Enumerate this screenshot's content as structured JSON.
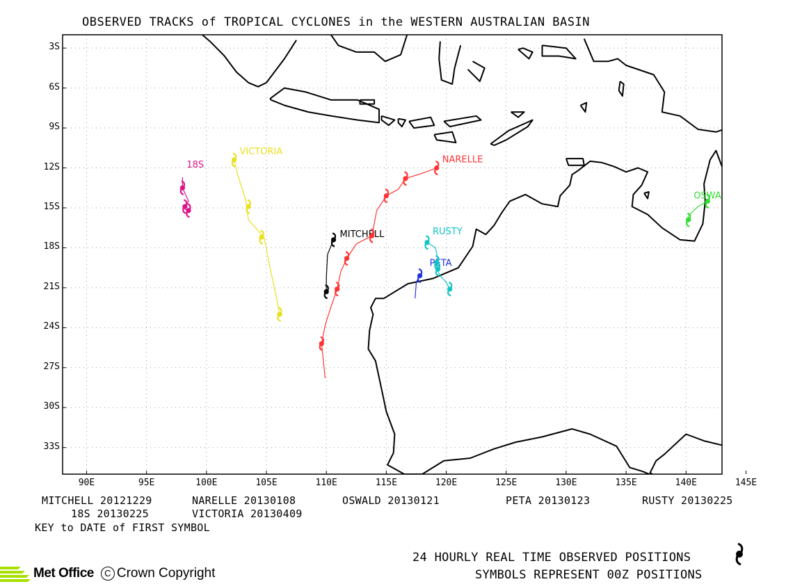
{
  "title": "OBSERVED TRACKS of TROPICAL CYCLONES in the WESTERN AUSTRALIAN BASIN",
  "map": {
    "lon_range": [
      88,
      143
    ],
    "lat_range": [
      -2,
      -35
    ],
    "lat_ticks": [
      "3S",
      "6S",
      "9S",
      "12S",
      "15S",
      "18S",
      "21S",
      "24S",
      "27S",
      "30S",
      "33S"
    ],
    "lon_ticks": [
      "90E",
      "95E",
      "100E",
      "105E",
      "110E",
      "115E",
      "120E",
      "125E",
      "130E",
      "135E",
      "140E",
      "145E"
    ],
    "grid": "dotted"
  },
  "storms": [
    {
      "name": "MITCHELL",
      "color": "#000000",
      "label": "MITCHELL",
      "track": [
        [
          110.6,
          -17.4
        ],
        [
          110.1,
          -18.5
        ],
        [
          110.0,
          -20.2
        ],
        [
          110.0,
          -21.3
        ]
      ],
      "symbols": [
        [
          110.6,
          -17.4
        ],
        [
          110.0,
          -21.3
        ]
      ]
    },
    {
      "name": "NARELLE",
      "color": "#ff3333",
      "label": "NARELLE",
      "track": [
        [
          119.2,
          -12.0
        ],
        [
          118.0,
          -12.4
        ],
        [
          116.6,
          -12.8
        ],
        [
          116.0,
          -13.6
        ],
        [
          115.0,
          -14.1
        ],
        [
          114.2,
          -15.2
        ],
        [
          113.8,
          -17.1
        ],
        [
          112.5,
          -17.7
        ],
        [
          111.7,
          -18.8
        ],
        [
          111.2,
          -19.8
        ],
        [
          110.9,
          -21.1
        ],
        [
          110.4,
          -22.4
        ],
        [
          109.9,
          -23.8
        ],
        [
          109.6,
          -25.2
        ],
        [
          109.9,
          -27.8
        ]
      ],
      "symbols": [
        [
          119.2,
          -12.0
        ],
        [
          116.6,
          -12.8
        ],
        [
          115.0,
          -14.1
        ],
        [
          113.8,
          -17.1
        ],
        [
          111.7,
          -18.8
        ],
        [
          110.9,
          -21.1
        ],
        [
          109.6,
          -25.2
        ]
      ]
    },
    {
      "name": "OSWALD",
      "color": "#33dd33",
      "label": "OSWALD",
      "track": [
        [
          141.8,
          -14.5
        ],
        [
          141.0,
          -14.9
        ],
        [
          140.2,
          -15.6
        ],
        [
          140.1,
          -16.0
        ]
      ],
      "symbols": [
        [
          141.8,
          -14.5
        ],
        [
          140.2,
          -15.9
        ]
      ]
    },
    {
      "name": "PETA",
      "color": "#2233dd",
      "label": "PETA",
      "track": [
        [
          117.8,
          -20.0
        ],
        [
          117.5,
          -20.6
        ],
        [
          117.4,
          -21.8
        ]
      ],
      "symbols": [
        [
          117.8,
          -20.1
        ]
      ]
    },
    {
      "name": "RUSTY",
      "color": "#11c4c4",
      "label": "RUSTY",
      "track": [
        [
          118.4,
          -17.6
        ],
        [
          119.1,
          -18.0
        ],
        [
          119.3,
          -18.9
        ],
        [
          119.2,
          -19.6
        ],
        [
          119.5,
          -20.1
        ],
        [
          120.0,
          -20.6
        ],
        [
          120.3,
          -21.1
        ]
      ],
      "symbols": [
        [
          118.4,
          -17.6
        ],
        [
          119.2,
          -19.1
        ],
        [
          119.3,
          -19.6
        ],
        [
          120.3,
          -21.1
        ]
      ]
    },
    {
      "name": "18S",
      "color": "#dd1188",
      "label": "18S",
      "track": [
        [
          98.0,
          -12.7
        ],
        [
          98.0,
          -13.5
        ],
        [
          98.5,
          -14.5
        ],
        [
          98.1,
          -15.0
        ],
        [
          98.5,
          -15.3
        ]
      ],
      "symbols": [
        [
          98.0,
          -13.5
        ],
        [
          98.2,
          -14.9
        ],
        [
          98.5,
          -15.2
        ]
      ]
    },
    {
      "name": "VICTORIA",
      "color": "#e8e020",
      "label": "VICTORIA",
      "track": [
        [
          102.3,
          -11.4
        ],
        [
          102.6,
          -12.5
        ],
        [
          103.3,
          -14.5
        ],
        [
          103.5,
          -15.9
        ],
        [
          104.2,
          -16.6
        ],
        [
          104.8,
          -17.2
        ],
        [
          105.3,
          -19.5
        ],
        [
          105.9,
          -22.0
        ],
        [
          106.1,
          -23.0
        ]
      ],
      "symbols": [
        [
          102.3,
          -11.4
        ],
        [
          103.5,
          -14.9
        ],
        [
          104.6,
          -17.2
        ],
        [
          106.1,
          -23.0
        ]
      ]
    }
  ],
  "key": {
    "mitchell": "MITCHELL 20121229",
    "narelle": "NARELLE 20130108",
    "oswald": "OSWALD 20130121",
    "peta": "PETA 20130123",
    "rusty": "RUSTY 20130225",
    "s18": "18S 20130225",
    "victoria": "VICTORIA 20130409",
    "note": "KEY to DATE of FIRST SYMBOL"
  },
  "footer": {
    "line1": "24 HOURLY REAL TIME OBSERVED POSITIONS",
    "line2": "SYMBOLS REPRESENT 00Z POSITIONS",
    "logo_text": "Met Office",
    "copyright": "Crown Copyright"
  }
}
